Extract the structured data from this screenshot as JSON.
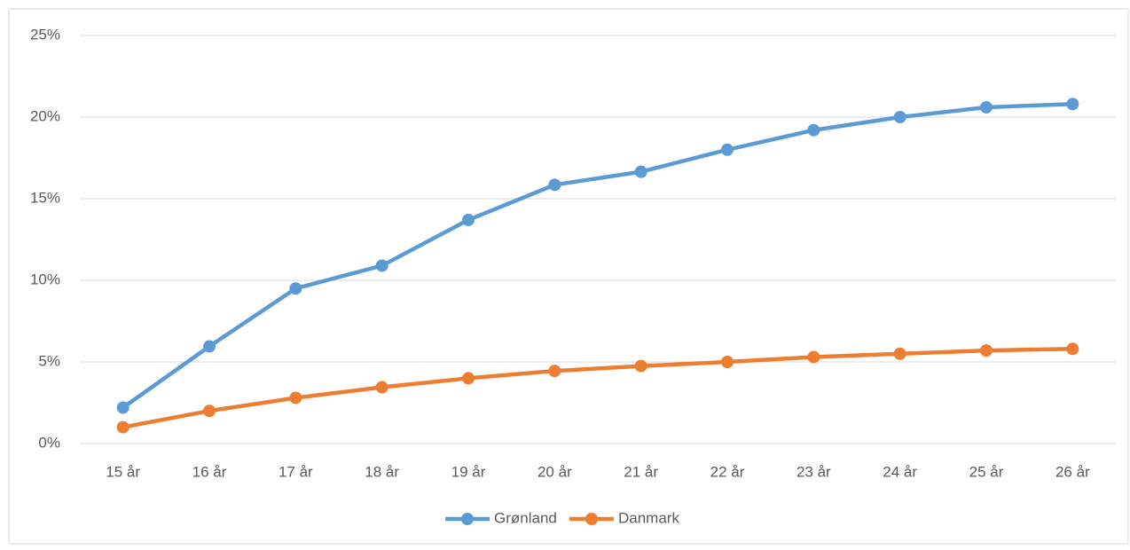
{
  "chart_data": {
    "type": "line",
    "categories": [
      "15 år",
      "16 år",
      "17 år",
      "18 år",
      "19 år",
      "20 år",
      "21 år",
      "22 år",
      "23 år",
      "24 år",
      "25 år",
      "26 år"
    ],
    "series": [
      {
        "name": "Grønland",
        "color": "#5b9bd5",
        "values": [
          2.2,
          5.95,
          9.5,
          10.9,
          13.7,
          15.85,
          16.65,
          18.0,
          19.2,
          20.0,
          20.6,
          20.8
        ]
      },
      {
        "name": "Danmark",
        "color": "#ed7d31",
        "values": [
          1.0,
          2.0,
          2.8,
          3.45,
          4.0,
          4.45,
          4.75,
          5.0,
          5.3,
          5.5,
          5.7,
          5.8
        ]
      }
    ],
    "ylim": [
      0,
      25
    ],
    "yticks": [
      {
        "value": 0,
        "label": "0%"
      },
      {
        "value": 5,
        "label": "5%"
      },
      {
        "value": 10,
        "label": "10%"
      },
      {
        "value": 15,
        "label": "15%"
      },
      {
        "value": 20,
        "label": "20%"
      },
      {
        "value": 25,
        "label": "25%"
      }
    ],
    "grid": true,
    "legend": "bottom"
  }
}
